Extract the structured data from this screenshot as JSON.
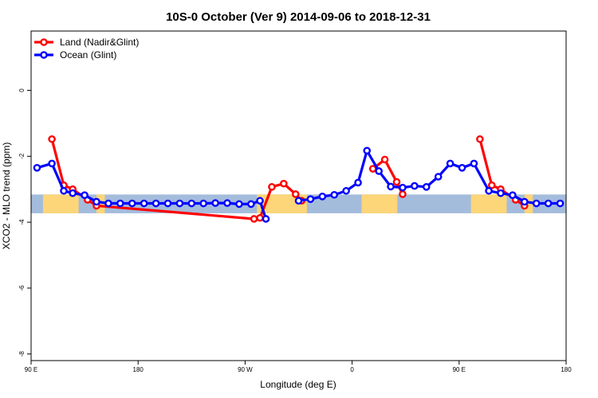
{
  "chart_data": {
    "type": "line",
    "title": "10S-0 October (Ver 9)   2014-09-06 to 2018-12-31",
    "xlabel": "Longitude (deg E)",
    "ylabel": "XCO2 - MLO trend (ppm)",
    "xlim": [
      90,
      540
    ],
    "ylim": [
      -8.2,
      1.8
    ],
    "x_ticks": [
      {
        "value": 90,
        "label": "90 E"
      },
      {
        "value": 180,
        "label": "180"
      },
      {
        "value": 270,
        "label": "90 W"
      },
      {
        "value": 360,
        "label": "0"
      },
      {
        "value": 450,
        "label": "90 E"
      },
      {
        "value": 540,
        "label": "180"
      }
    ],
    "y_ticks": [
      {
        "value": 0,
        "label": "0"
      },
      {
        "value": -2,
        "label": "-2"
      },
      {
        "value": -4,
        "label": "-4"
      },
      {
        "value": -6,
        "label": "-6"
      },
      {
        "value": -8,
        "label": "-8"
      }
    ],
    "grid": false,
    "legend_position": "top-left",
    "series": [
      {
        "name": "Land (Nadir&Glint)",
        "color": "#ff0000",
        "points": [
          [
            107.5,
            -1.48
          ],
          [
            117.5,
            -2.88
          ],
          [
            125,
            -3.0
          ],
          [
            137.5,
            -3.32
          ],
          [
            145,
            -3.5
          ],
          [
            277.5,
            -3.9
          ],
          [
            282.5,
            -3.87
          ],
          [
            292.5,
            -2.93
          ],
          [
            302.5,
            -2.83
          ],
          [
            312.5,
            -3.15
          ],
          [
            317.5,
            -3.35
          ],
          null,
          [
            377.5,
            -2.38
          ],
          [
            387.5,
            -2.1
          ],
          [
            397.5,
            -2.78
          ],
          [
            402.5,
            -3.15
          ],
          null,
          [
            467.5,
            -1.48
          ],
          [
            477.5,
            -2.88
          ],
          [
            485,
            -3.0
          ],
          [
            497.5,
            -3.32
          ],
          [
            505,
            -3.5
          ]
        ]
      },
      {
        "name": "Ocean (Glint)",
        "color": "#0000ff",
        "points": [
          [
            95,
            -2.35
          ],
          [
            107.5,
            -2.22
          ],
          [
            117.5,
            -3.05
          ],
          [
            125,
            -3.12
          ],
          [
            135,
            -3.18
          ],
          [
            145,
            -3.38
          ],
          [
            155,
            -3.43
          ],
          [
            165,
            -3.43
          ],
          [
            175,
            -3.43
          ],
          [
            185,
            -3.43
          ],
          [
            195,
            -3.43
          ],
          [
            205,
            -3.43
          ],
          [
            215,
            -3.43
          ],
          [
            225,
            -3.43
          ],
          [
            235,
            -3.43
          ],
          [
            245,
            -3.42
          ],
          [
            255,
            -3.42
          ],
          [
            265,
            -3.45
          ],
          [
            275,
            -3.45
          ],
          [
            282.5,
            -3.35
          ],
          [
            287.5,
            -3.9
          ],
          null,
          [
            315,
            -3.35
          ],
          [
            325,
            -3.3
          ],
          [
            335,
            -3.22
          ],
          [
            345,
            -3.17
          ],
          [
            355,
            -3.05
          ],
          [
            365,
            -2.8
          ],
          [
            372.5,
            -1.83
          ],
          [
            382.5,
            -2.45
          ],
          [
            392.5,
            -2.92
          ],
          [
            402.5,
            -2.95
          ],
          [
            412.5,
            -2.9
          ],
          [
            422.5,
            -2.93
          ],
          [
            432.5,
            -2.62
          ],
          [
            442.5,
            -2.22
          ],
          [
            452.5,
            -2.35
          ],
          [
            462.5,
            -2.22
          ],
          [
            475,
            -3.05
          ],
          [
            485,
            -3.12
          ],
          [
            495,
            -3.18
          ],
          [
            505,
            -3.38
          ],
          [
            515,
            -3.43
          ],
          [
            525,
            -3.43
          ],
          [
            535,
            -3.43
          ]
        ]
      }
    ]
  },
  "map_strip": {
    "lat_top": 0,
    "lat_bottom": -10,
    "ocean_color": "#a4bcdc",
    "land_color": "#fcd678",
    "land_segments": [
      [
        100,
        130
      ],
      [
        145,
        152
      ],
      [
        280,
        322
      ],
      [
        368,
        398
      ],
      [
        460,
        490
      ],
      [
        505,
        512
      ]
    ]
  }
}
